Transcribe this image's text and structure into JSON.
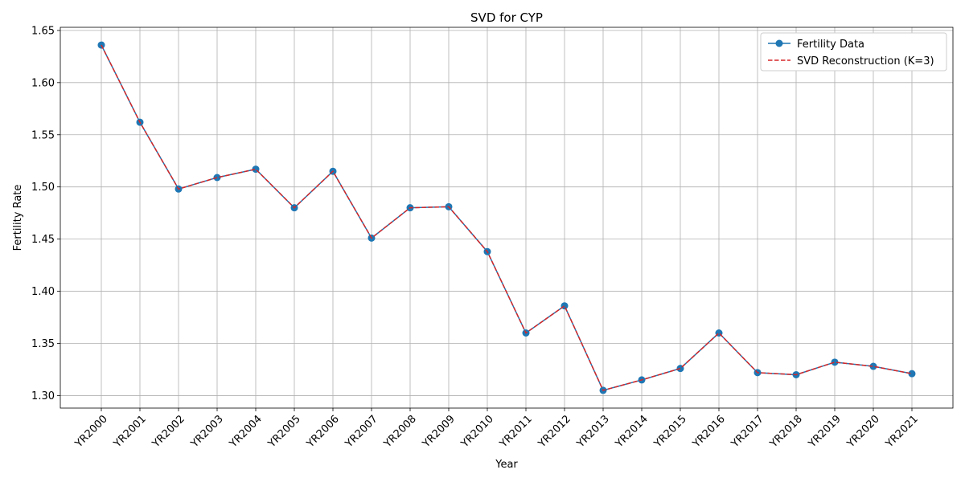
{
  "chart_data": {
    "type": "line",
    "title": "SVD for CYP",
    "xlabel": "Year",
    "ylabel": "Fertility Rate",
    "categories": [
      "YR2000",
      "YR2001",
      "YR2002",
      "YR2003",
      "YR2004",
      "YR2005",
      "YR2006",
      "YR2007",
      "YR2008",
      "YR2009",
      "YR2010",
      "YR2011",
      "YR2012",
      "YR2013",
      "YR2014",
      "YR2015",
      "YR2016",
      "YR2017",
      "YR2018",
      "YR2019",
      "YR2020",
      "YR2021"
    ],
    "yticks": [
      "1.30",
      "1.35",
      "1.40",
      "1.45",
      "1.50",
      "1.55",
      "1.60",
      "1.65"
    ],
    "ylim": [
      1.288,
      1.653
    ],
    "grid": true,
    "legend_position": "top-right",
    "series": [
      {
        "name": "Fertility Data",
        "color": "#1f77b4",
        "style": "solid-with-circle-markers",
        "values": [
          1.636,
          1.562,
          1.498,
          1.509,
          1.517,
          1.48,
          1.515,
          1.451,
          1.48,
          1.481,
          1.438,
          1.36,
          1.386,
          1.305,
          1.315,
          1.326,
          1.36,
          1.322,
          1.32,
          1.332,
          1.328,
          1.321
        ]
      },
      {
        "name": "SVD Reconstruction (K=3)",
        "color": "#d62728",
        "style": "dashed",
        "values": [
          1.636,
          1.562,
          1.498,
          1.509,
          1.517,
          1.48,
          1.515,
          1.451,
          1.48,
          1.481,
          1.438,
          1.36,
          1.386,
          1.305,
          1.315,
          1.326,
          1.36,
          1.322,
          1.32,
          1.332,
          1.328,
          1.321
        ]
      }
    ]
  }
}
